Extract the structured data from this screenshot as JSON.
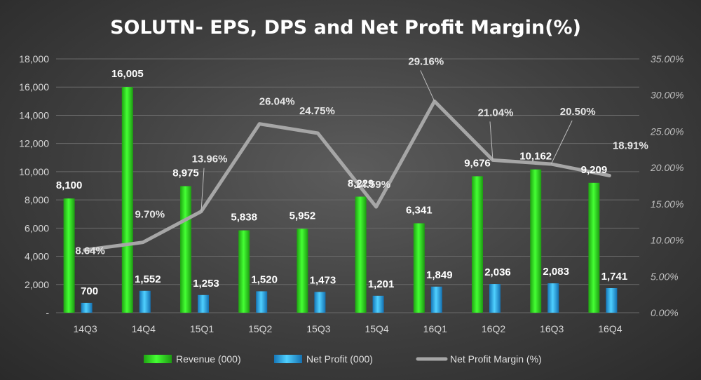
{
  "chart_data": {
    "type": "bar",
    "title": "SOLUTN- EPS, DPS and Net Profit Margin(%)",
    "categories": [
      "14Q3",
      "14Q4",
      "15Q1",
      "15Q2",
      "15Q3",
      "15Q4",
      "16Q1",
      "16Q2",
      "16Q3",
      "16Q4"
    ],
    "series": [
      {
        "name": "Revenue (000)",
        "kind": "bar",
        "axis": "left",
        "color": "#33ee22",
        "values": [
          8100,
          16005,
          8975,
          5838,
          5952,
          8229,
          6341,
          9676,
          10162,
          9209
        ],
        "labels": [
          "8,100",
          "16,005",
          "8,975",
          "5,838",
          "5,952",
          "8,229",
          "6,341",
          "9,676",
          "10,162",
          "9,209"
        ]
      },
      {
        "name": "Net Profit  (000)",
        "kind": "bar",
        "axis": "left",
        "color": "#29b6f6",
        "values": [
          700,
          1552,
          1253,
          1520,
          1473,
          1201,
          1849,
          2036,
          2083,
          1741
        ],
        "labels": [
          "700",
          "1,552",
          "1,253",
          "1,520",
          "1,473",
          "1,201",
          "1,849",
          "2,036",
          "2,083",
          "1,741"
        ]
      },
      {
        "name": "Net Profit Margin (%)",
        "kind": "line",
        "axis": "right",
        "color": "#a6a6a6",
        "values": [
          8.64,
          9.7,
          13.96,
          26.04,
          24.75,
          14.59,
          29.16,
          21.04,
          20.5,
          18.91
        ],
        "labels": [
          "8.64%",
          "9.70%",
          "13.96%",
          "26.04%",
          "24.75%",
          "14.59%",
          "29.16%",
          "21.04%",
          "20.50%",
          "18.91%"
        ]
      }
    ],
    "y_left": {
      "min": 0,
      "max": 18000,
      "ticks": [
        "-",
        "2,000",
        "4,000",
        "6,000",
        "8,000",
        "10,000",
        "12,000",
        "14,000",
        "16,000",
        "18,000"
      ]
    },
    "y_right": {
      "min": 0,
      "max": 35,
      "ticks": [
        "0.00%",
        "5.00%",
        "10.00%",
        "15.00%",
        "20.00%",
        "25.00%",
        "30.00%",
        "35.00%"
      ]
    },
    "grid": true,
    "legend_position": "bottom"
  }
}
